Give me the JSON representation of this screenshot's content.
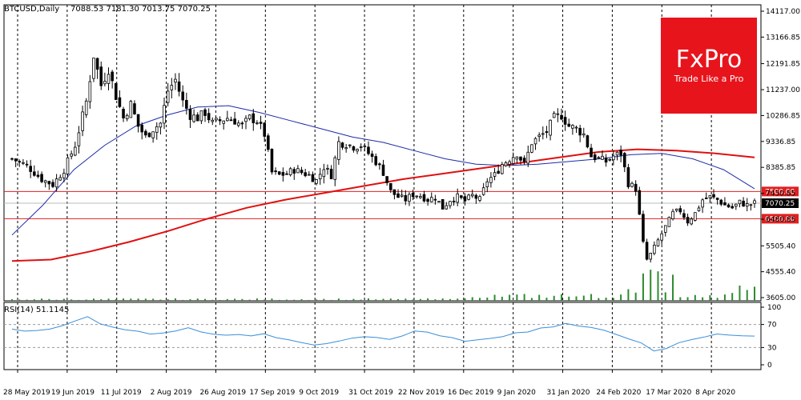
{
  "header": {
    "symbol": "BTCUSD,Daily",
    "ohlc": "7088.53 7181.30 7013.75 7070.25"
  },
  "rsi": {
    "label": "RSI(14) 51.1145",
    "levels": [
      70,
      30
    ],
    "ticks": [
      "100",
      "70",
      "30",
      "0"
    ]
  },
  "logo": {
    "brand": "FxPro",
    "tagline": "Trade Like a Pro"
  },
  "colors": {
    "candle": "#000000",
    "ma_fast": "#1c2ba8",
    "ma_slow": "#e01010",
    "level_line": "#e02020",
    "rsi": "#3a8fd8",
    "volume": "#2e8b2e",
    "logo_bg": "#e8141c"
  },
  "chart_data": {
    "type": "candlestick",
    "x_labels": [
      "28 May 2019",
      "19 Jun 2019",
      "11 Jul 2019",
      "2 Aug 2019",
      "26 Aug 2019",
      "17 Sep 2019",
      "9 Oct 2019",
      "31 Oct 2019",
      "22 Nov 2019",
      "16 Dec 2019",
      "9 Jan 2020",
      "31 Jan 2020",
      "24 Feb 2020",
      "17 Mar 2020",
      "8 Apr 2020"
    ],
    "y_ticks": [
      "14117.00",
      "13166.85",
      "12191.85",
      "11237.00",
      "10286.85",
      "9336.85",
      "8385.85",
      "7430.85",
      "6480.85",
      "5505.40",
      "4555.40",
      "3605.00"
    ],
    "ylim": [
      3605,
      14117
    ],
    "horizontal_levels": [
      {
        "value": 7500,
        "label": "7500.00"
      },
      {
        "value": 6500,
        "label": "6500.00"
      }
    ],
    "last_price": {
      "value": 7070.25,
      "label": "7070.25"
    },
    "close_path": [
      [
        0,
        8700
      ],
      [
        4,
        8450
      ],
      [
        8,
        7950
      ],
      [
        11,
        7750
      ],
      [
        14,
        8300
      ],
      [
        17,
        9200
      ],
      [
        20,
        10800
      ],
      [
        22,
        12500
      ],
      [
        24,
        11400
      ],
      [
        26,
        12000
      ],
      [
        28,
        11000
      ],
      [
        30,
        10200
      ],
      [
        32,
        10700
      ],
      [
        34,
        9900
      ],
      [
        36,
        9500
      ],
      [
        38,
        9800
      ],
      [
        40,
        10000
      ],
      [
        42,
        11200
      ],
      [
        44,
        11600
      ],
      [
        46,
        10800
      ],
      [
        48,
        10300
      ],
      [
        50,
        10200
      ],
      [
        52,
        10400
      ],
      [
        54,
        10000
      ],
      [
        56,
        10100
      ],
      [
        58,
        10200
      ],
      [
        60,
        10100
      ],
      [
        62,
        9900
      ],
      [
        64,
        10200
      ],
      [
        66,
        10100
      ],
      [
        68,
        9600
      ],
      [
        70,
        8200
      ],
      [
        72,
        8100
      ],
      [
        74,
        8150
      ],
      [
        76,
        8300
      ],
      [
        78,
        8200
      ],
      [
        80,
        8100
      ],
      [
        82,
        7900
      ],
      [
        84,
        8400
      ],
      [
        86,
        8100
      ],
      [
        88,
        9300
      ],
      [
        90,
        9250
      ],
      [
        92,
        9150
      ],
      [
        94,
        9200
      ],
      [
        96,
        8900
      ],
      [
        98,
        8600
      ],
      [
        100,
        8200
      ],
      [
        102,
        7500
      ],
      [
        104,
        7300
      ],
      [
        106,
        7200
      ],
      [
        108,
        7400
      ],
      [
        110,
        7350
      ],
      [
        112,
        7200
      ],
      [
        114,
        7300
      ],
      [
        116,
        6900
      ],
      [
        118,
        7200
      ],
      [
        120,
        7300
      ],
      [
        122,
        7150
      ],
      [
        124,
        7350
      ],
      [
        126,
        7200
      ],
      [
        128,
        7900
      ],
      [
        130,
        8100
      ],
      [
        132,
        8500
      ],
      [
        134,
        8700
      ],
      [
        136,
        8900
      ],
      [
        138,
        8500
      ],
      [
        140,
        9300
      ],
      [
        142,
        9500
      ],
      [
        144,
        9700
      ],
      [
        146,
        10200
      ],
      [
        148,
        10300
      ],
      [
        150,
        9900
      ],
      [
        152,
        9800
      ],
      [
        154,
        9600
      ],
      [
        156,
        8800
      ],
      [
        158,
        8700
      ],
      [
        160,
        8600
      ],
      [
        162,
        8800
      ],
      [
        164,
        8900
      ],
      [
        166,
        7800
      ],
      [
        168,
        7600
      ],
      [
        170,
        5600
      ],
      [
        171,
        5000
      ],
      [
        172,
        5200
      ],
      [
        174,
        5700
      ],
      [
        176,
        6200
      ],
      [
        178,
        6700
      ],
      [
        180,
        6800
      ],
      [
        182,
        6400
      ],
      [
        184,
        6700
      ],
      [
        186,
        7200
      ],
      [
        188,
        7300
      ],
      [
        190,
        7200
      ],
      [
        192,
        7000
      ],
      [
        194,
        6900
      ],
      [
        196,
        7100
      ],
      [
        198,
        7000
      ],
      [
        200,
        7070
      ]
    ],
    "series": [
      {
        "name": "",
        "values": [
          5900,
          7000,
          8300,
          9200,
          9900,
          10300,
          10600,
          10650,
          10400,
          10100,
          9800,
          9500,
          9300,
          9000,
          8700,
          8500,
          8450,
          8500,
          8600,
          8700,
          8850,
          8900,
          8700,
          8300,
          7600
        ]
      },
      {
        "name": "",
        "values": [
          4950,
          5000,
          5300,
          5650,
          6050,
          6500,
          6900,
          7200,
          7450,
          7700,
          7950,
          8150,
          8350,
          8550,
          8750,
          8950,
          9050,
          9000,
          8900,
          8750
        ]
      }
    ],
    "rsi_values": [
      62,
      60,
      58,
      63,
      68,
      78,
      85,
      70,
      65,
      60,
      58,
      55,
      56,
      60,
      63,
      58,
      55,
      52,
      54,
      50,
      52,
      48,
      45,
      40,
      36,
      38,
      42,
      48,
      50,
      46,
      44,
      50,
      60,
      55,
      50,
      46,
      40,
      42,
      44,
      50,
      55,
      58,
      62,
      66,
      70,
      68,
      64,
      60,
      52,
      44,
      38,
      24,
      30,
      40,
      45,
      50,
      52,
      53,
      52,
      51
    ]
  }
}
